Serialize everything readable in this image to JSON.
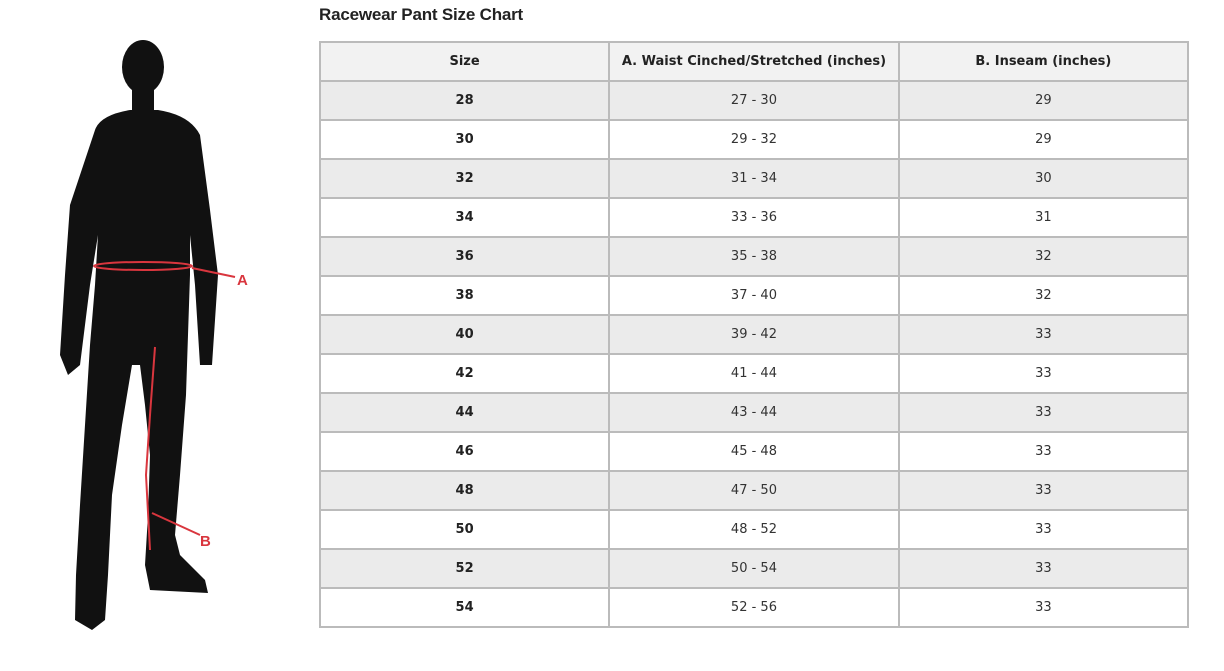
{
  "title": "Racewear Pant Size Chart",
  "figure": {
    "label_a": "A",
    "label_b": "B",
    "accent_color": "#d9363e"
  },
  "table": {
    "headers": [
      "Size",
      "A. Waist Cinched/Stretched (inches)",
      "B. Inseam (inches)"
    ],
    "rows": [
      [
        "28",
        "27 - 30",
        "29"
      ],
      [
        "30",
        "29 - 32",
        "29"
      ],
      [
        "32",
        "31 - 34",
        "30"
      ],
      [
        "34",
        "33 - 36",
        "31"
      ],
      [
        "36",
        "35 - 38",
        "32"
      ],
      [
        "38",
        "37 - 40",
        "32"
      ],
      [
        "40",
        "39 - 42",
        "33"
      ],
      [
        "42",
        "41 - 44",
        "33"
      ],
      [
        "44",
        "43 - 44",
        "33"
      ],
      [
        "46",
        "45 - 48",
        "33"
      ],
      [
        "48",
        "47 - 50",
        "33"
      ],
      [
        "50",
        "48 - 52",
        "33"
      ],
      [
        "52",
        "50 - 54",
        "33"
      ],
      [
        "54",
        "52 - 56",
        "33"
      ]
    ]
  }
}
